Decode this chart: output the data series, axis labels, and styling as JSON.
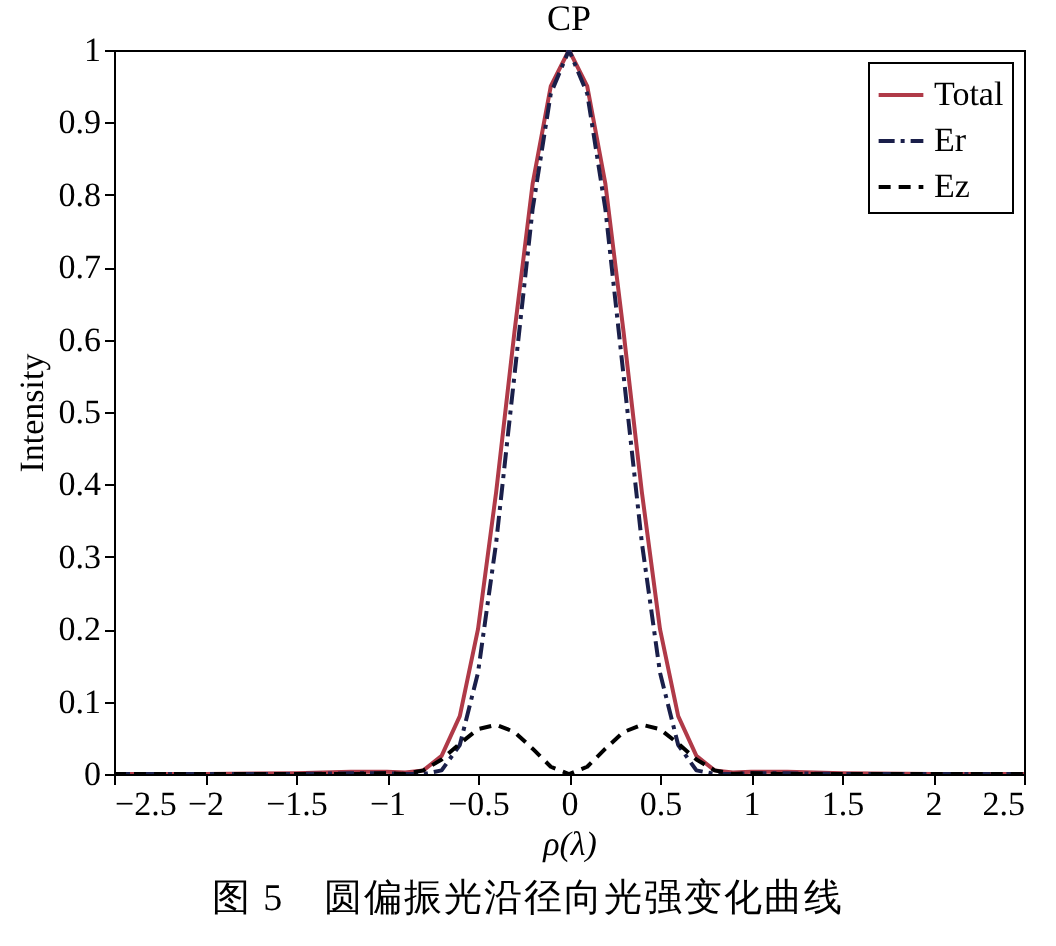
{
  "chart_data": {
    "type": "line",
    "title": "CP",
    "xlabel": "ρ(λ)",
    "ylabel": "Intensity",
    "annotations": [
      "图 5　圆偏振光沿径向光强变化曲线"
    ],
    "x": [
      -2.5,
      -2,
      -1.5,
      -1.2,
      -1,
      -0.9,
      -0.8,
      -0.7,
      -0.6,
      -0.5,
      -0.4,
      -0.3,
      -0.2,
      -0.1,
      0,
      0.1,
      0.2,
      0.3,
      0.4,
      0.5,
      0.6,
      0.7,
      0.8,
      0.9,
      1,
      1.2,
      1.5,
      2,
      2.5
    ],
    "series": [
      {
        "name": "Total",
        "color": "#b03a48",
        "line_style": "solid",
        "values": [
          0,
          0,
          0.001,
          0.003,
          0.003,
          0.002,
          0.005,
          0.025,
          0.08,
          0.2,
          0.39,
          0.61,
          0.815,
          0.95,
          1,
          0.95,
          0.815,
          0.61,
          0.39,
          0.2,
          0.08,
          0.025,
          0.005,
          0.002,
          0.003,
          0.003,
          0.001,
          0,
          0
        ]
      },
      {
        "name": "Er",
        "color": "#1a1f4a",
        "line_style": "dashdot",
        "values": [
          0,
          0,
          0,
          0.001,
          0.001,
          0,
          0,
          0.005,
          0.04,
          0.14,
          0.32,
          0.55,
          0.78,
          0.94,
          1,
          0.94,
          0.78,
          0.55,
          0.32,
          0.14,
          0.04,
          0.005,
          0,
          0,
          0.001,
          0.001,
          0,
          0,
          0
        ]
      },
      {
        "name": "Ez",
        "color": "#000000",
        "line_style": "dashed",
        "values": [
          0,
          0,
          0,
          0,
          0.001,
          0,
          0.005,
          0.02,
          0.042,
          0.062,
          0.068,
          0.058,
          0.035,
          0.01,
          0,
          0.01,
          0.035,
          0.058,
          0.068,
          0.062,
          0.042,
          0.02,
          0.005,
          0,
          0.001,
          0,
          0,
          0,
          0
        ]
      }
    ],
    "xlim": [
      -2.5,
      2.5
    ],
    "xticks": [
      {
        "value": -2.5,
        "label": "−2.5"
      },
      {
        "value": -2,
        "label": "−2"
      },
      {
        "value": -1.5,
        "label": "−1.5"
      },
      {
        "value": -1,
        "label": "−1"
      },
      {
        "value": -0.5,
        "label": "−0.5"
      },
      0,
      0.5,
      1,
      1.5,
      2,
      2.5
    ],
    "ylim": [
      0,
      1
    ],
    "yticks": [
      0,
      0.1,
      0.2,
      0.3,
      0.4,
      0.5,
      0.6,
      0.7,
      0.8,
      0.9,
      1
    ],
    "legend": "top right",
    "grid": false
  }
}
